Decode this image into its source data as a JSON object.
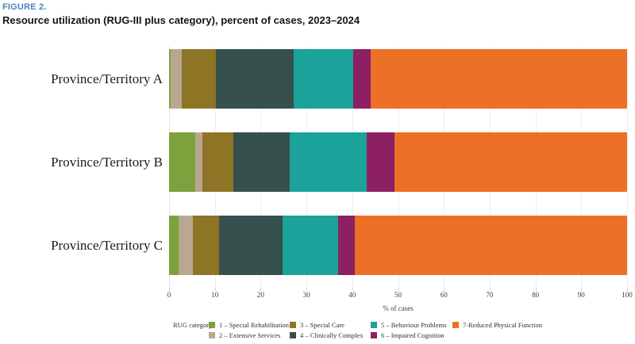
{
  "header": {
    "figure_label": "FIGURE 2.",
    "title": "Resource utilization (RUG-III plus category), percent of cases, 2023–2024"
  },
  "chart_data": {
    "type": "bar",
    "orientation": "horizontal",
    "stacked": true,
    "title": "Resource utilization (RUG-III plus category), percent of cases, 2023–2024",
    "categories": [
      "Province/Territory A",
      "Province/Territory B",
      "Province/Territory C"
    ],
    "series": [
      {
        "name": "1 – Special Rehabilitation",
        "color": "#7ba23c",
        "values": [
          0.4,
          5.8,
          2.0
        ]
      },
      {
        "name": "2 – Extensive Services",
        "color": "#b9a890",
        "values": [
          2.4,
          1.4,
          3.2
        ]
      },
      {
        "name": "3 – Special Care",
        "color": "#8e7425",
        "values": [
          7.5,
          6.8,
          5.8
        ]
      },
      {
        "name": "4 – Clinically Complex",
        "color": "#36504e",
        "values": [
          17.0,
          12.4,
          13.8
        ]
      },
      {
        "name": "5 – Behaviour Problems",
        "color": "#1ba29b",
        "values": [
          12.9,
          16.8,
          12.1
        ]
      },
      {
        "name": "6 – Impaired Cognition",
        "color": "#8c2062",
        "values": [
          3.8,
          6.0,
          3.6
        ]
      },
      {
        "name": "7-Reduced Physical Function",
        "color": "#ed7027",
        "values": [
          56.0,
          50.8,
          59.5
        ]
      }
    ],
    "xlabel": "% of cases",
    "xlim": [
      0,
      100
    ],
    "xticks": [
      0,
      10,
      20,
      30,
      40,
      50,
      60,
      70,
      80,
      90,
      100
    ],
    "legend_title": "RUG category",
    "legend_position": "bottom",
    "grid": "vertical"
  }
}
